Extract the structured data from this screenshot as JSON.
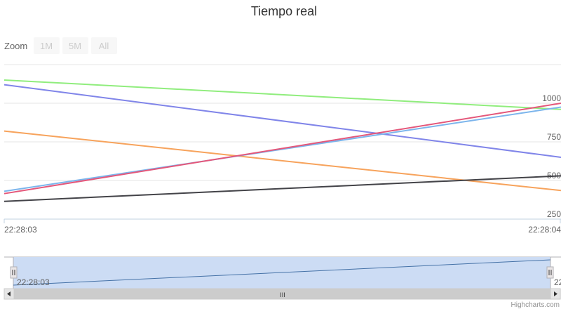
{
  "chart_data": {
    "type": "line",
    "title": "Tiempo real",
    "x": [
      "22:28:03",
      "22:28:04"
    ],
    "x_tick_labels": [
      "22:28:03",
      "22:28:04"
    ],
    "y_tick_labels": [
      "250",
      "500",
      "750",
      "1000"
    ],
    "ylim": [
      250,
      1000
    ],
    "grid": true,
    "series": [
      {
        "values": [
          1150,
          960
        ],
        "color": "#90ed7d"
      },
      {
        "values": [
          1120,
          650
        ],
        "color": "#8085e9"
      },
      {
        "values": [
          820,
          435
        ],
        "color": "#f7a35c"
      },
      {
        "values": [
          430,
          975
        ],
        "color": "#7cb5ec"
      },
      {
        "values": [
          415,
          1000
        ],
        "color": "#e4577a"
      },
      {
        "values": [
          365,
          530
        ],
        "color": "#434348"
      }
    ]
  },
  "range_selector": {
    "label": "Zoom",
    "buttons": [
      "1M",
      "5M",
      "All"
    ]
  },
  "navigator": {
    "x_label": "22:28:03",
    "x_label_right": "22",
    "scrollbar_grip": "III"
  },
  "credits": "Highcharts.com",
  "colors": {
    "navigator_mask": "#ccdcf4",
    "navigator_line": "#4572a7",
    "scrollbar_bg": "#cccccc"
  }
}
